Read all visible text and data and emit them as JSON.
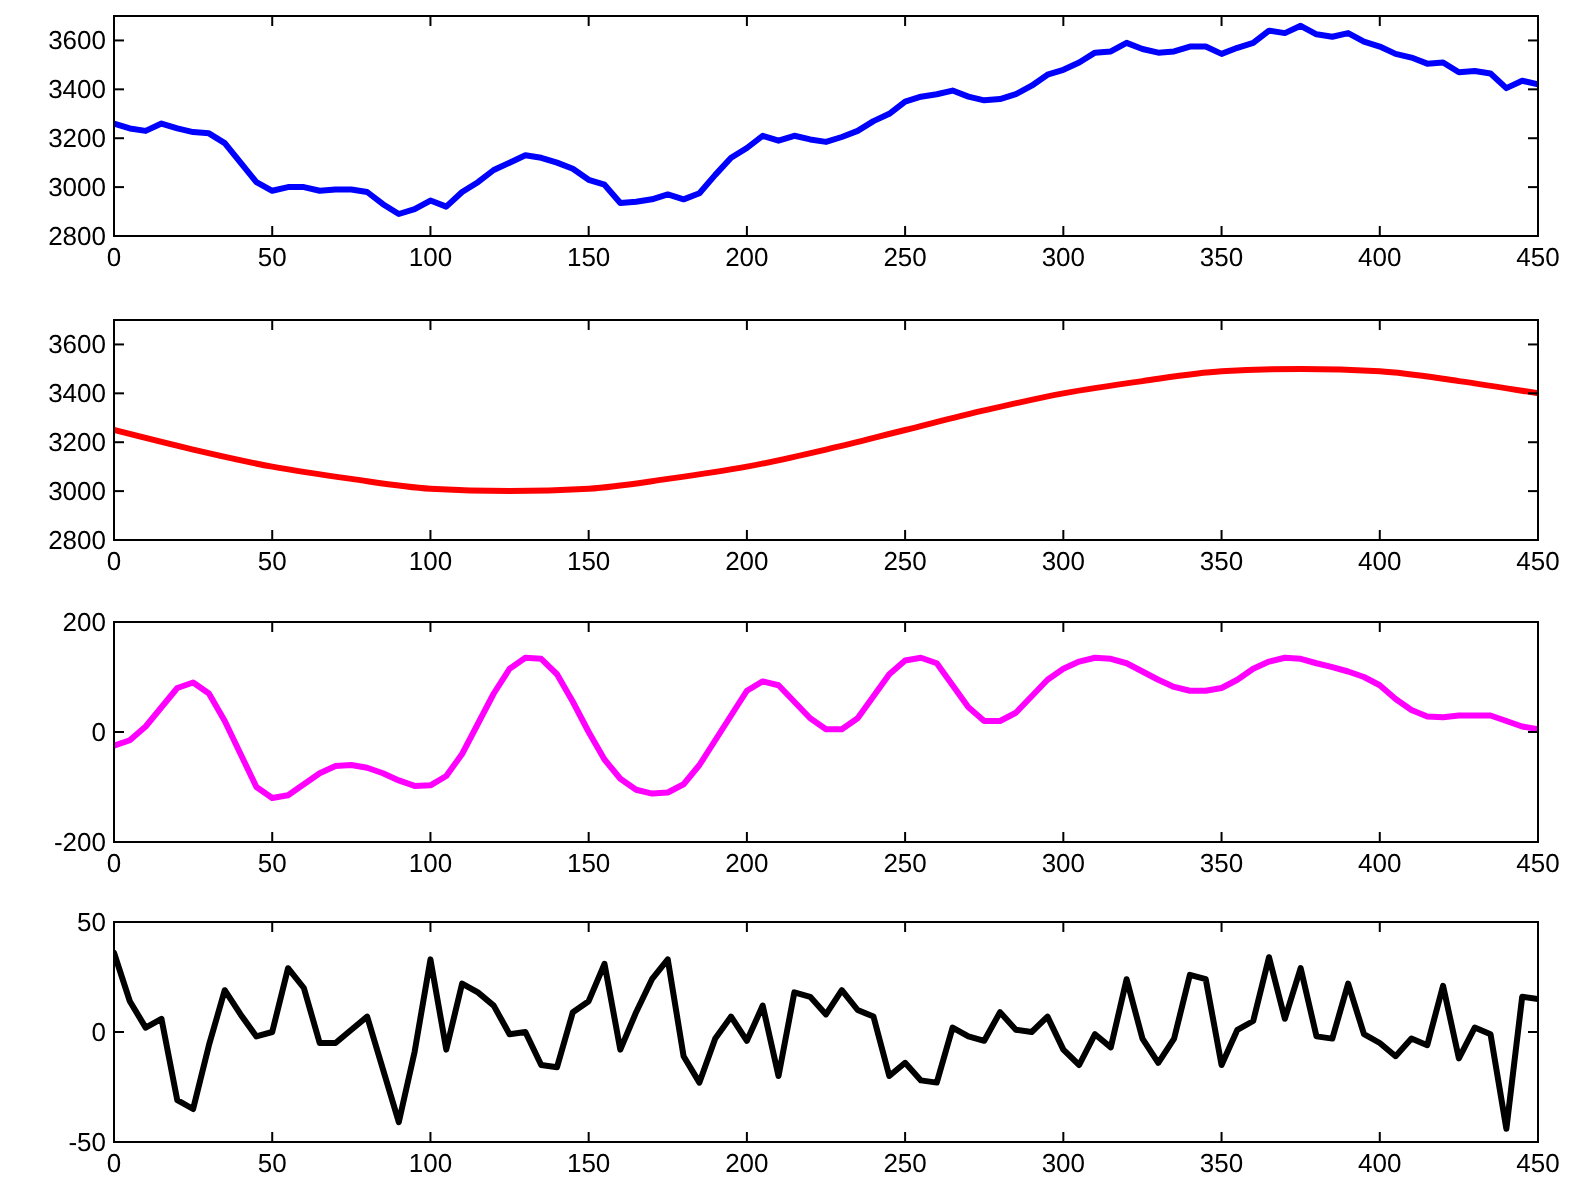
{
  "chart_data": [
    {
      "type": "line",
      "x": [
        0,
        5,
        10,
        15,
        20,
        25,
        30,
        35,
        40,
        45,
        50,
        55,
        60,
        65,
        70,
        75,
        80,
        85,
        90,
        95,
        100,
        105,
        110,
        115,
        120,
        125,
        130,
        135,
        140,
        145,
        150,
        155,
        160,
        165,
        170,
        175,
        180,
        185,
        190,
        195,
        200,
        205,
        210,
        215,
        220,
        225,
        230,
        235,
        240,
        245,
        250,
        255,
        260,
        265,
        270,
        275,
        280,
        285,
        290,
        295,
        300,
        305,
        310,
        315,
        320,
        325,
        330,
        335,
        340,
        345,
        350,
        355,
        360,
        365,
        370,
        375,
        380,
        385,
        390,
        395,
        400,
        405,
        410,
        415,
        420,
        425,
        430,
        435,
        440,
        445,
        450
      ],
      "series": [
        {
          "color": "#0000ff",
          "values": [
            3260,
            3240,
            3230,
            3260,
            3240,
            3225,
            3220,
            3180,
            3100,
            3020,
            2985,
            3000,
            3000,
            2985,
            2990,
            2990,
            2980,
            2930,
            2890,
            2910,
            2945,
            2920,
            2980,
            3020,
            3070,
            3100,
            3130,
            3120,
            3100,
            3075,
            3030,
            3010,
            2935,
            2940,
            2950,
            2970,
            2950,
            2975,
            3050,
            3120,
            3160,
            3210,
            3190,
            3210,
            3195,
            3185,
            3205,
            3230,
            3270,
            3300,
            3350,
            3370,
            3380,
            3395,
            3370,
            3355,
            3360,
            3380,
            3415,
            3460,
            3480,
            3510,
            3550,
            3555,
            3590,
            3565,
            3550,
            3555,
            3575,
            3575,
            3545,
            3570,
            3590,
            3640,
            3630,
            3660,
            3625,
            3615,
            3630,
            3595,
            3575,
            3545,
            3530,
            3505,
            3510,
            3470,
            3475,
            3465,
            3405,
            3435,
            3420
          ]
        }
      ],
      "xlim": [
        0,
        450
      ],
      "xticks": [
        0,
        50,
        100,
        150,
        200,
        250,
        300,
        350,
        400,
        450
      ],
      "ylim": [
        2800,
        3700
      ],
      "yticks": [
        2800,
        3000,
        3200,
        3400,
        3600
      ],
      "grid": false,
      "marker": "none",
      "line_style": "solid"
    },
    {
      "type": "line",
      "x": [
        0,
        25,
        50,
        75,
        100,
        125,
        150,
        175,
        200,
        225,
        250,
        275,
        300,
        325,
        350,
        375,
        400,
        425,
        450
      ],
      "series": [
        {
          "color": "#ff0000",
          "values": [
            3250,
            3170,
            3100,
            3050,
            3010,
            3000,
            3010,
            3050,
            3100,
            3170,
            3250,
            3330,
            3400,
            3450,
            3490,
            3500,
            3490,
            3450,
            3400
          ]
        }
      ],
      "xlim": [
        0,
        450
      ],
      "xticks": [
        0,
        50,
        100,
        150,
        200,
        250,
        300,
        350,
        400,
        450
      ],
      "ylim": [
        2800,
        3700
      ],
      "yticks": [
        2800,
        3000,
        3200,
        3400,
        3600
      ],
      "grid": false,
      "marker": "none",
      "line_style": "solid"
    },
    {
      "type": "line",
      "x": [
        0,
        5,
        10,
        15,
        20,
        25,
        30,
        35,
        40,
        45,
        50,
        55,
        60,
        65,
        70,
        75,
        80,
        85,
        90,
        95,
        100,
        105,
        110,
        115,
        120,
        125,
        130,
        135,
        140,
        145,
        150,
        155,
        160,
        165,
        170,
        175,
        180,
        185,
        190,
        195,
        200,
        205,
        210,
        215,
        220,
        225,
        230,
        235,
        240,
        245,
        250,
        255,
        260,
        265,
        270,
        275,
        280,
        285,
        290,
        295,
        300,
        305,
        310,
        315,
        320,
        325,
        330,
        335,
        340,
        345,
        350,
        355,
        360,
        365,
        370,
        375,
        380,
        385,
        390,
        395,
        400,
        405,
        410,
        415,
        420,
        425,
        430,
        435,
        440,
        445,
        450
      ],
      "series": [
        {
          "color": "#ff00ff",
          "values": [
            -25,
            -15,
            10,
            45,
            80,
            90,
            70,
            20,
            -40,
            -100,
            -120,
            -115,
            -95,
            -75,
            -62,
            -60,
            -65,
            -75,
            -88,
            -98,
            -97,
            -80,
            -40,
            15,
            70,
            115,
            135,
            133,
            105,
            55,
            0,
            -50,
            -85,
            -105,
            -112,
            -110,
            -95,
            -60,
            -15,
            30,
            75,
            92,
            85,
            55,
            25,
            5,
            5,
            25,
            65,
            105,
            130,
            135,
            125,
            85,
            45,
            20,
            20,
            35,
            65,
            95,
            115,
            128,
            135,
            133,
            125,
            110,
            95,
            82,
            75,
            75,
            80,
            95,
            115,
            128,
            135,
            133,
            125,
            118,
            110,
            100,
            85,
            60,
            40,
            28,
            27,
            30,
            30,
            30,
            20,
            10,
            5
          ]
        }
      ],
      "xlim": [
        0,
        450
      ],
      "xticks": [
        0,
        50,
        100,
        150,
        200,
        250,
        300,
        350,
        400,
        450
      ],
      "ylim": [
        -200,
        200
      ],
      "yticks": [
        -200,
        0,
        200
      ],
      "grid": false,
      "marker": "none",
      "line_style": "solid"
    },
    {
      "type": "line",
      "x": [
        0,
        5,
        10,
        15,
        20,
        25,
        30,
        35,
        40,
        45,
        50,
        55,
        60,
        65,
        70,
        75,
        80,
        85,
        90,
        95,
        100,
        105,
        110,
        115,
        120,
        125,
        130,
        135,
        140,
        145,
        150,
        155,
        160,
        165,
        170,
        175,
        180,
        185,
        190,
        195,
        200,
        205,
        210,
        215,
        220,
        225,
        230,
        235,
        240,
        245,
        250,
        255,
        260,
        265,
        270,
        275,
        280,
        285,
        290,
        295,
        300,
        305,
        310,
        315,
        320,
        325,
        330,
        335,
        340,
        345,
        350,
        355,
        360,
        365,
        370,
        375,
        380,
        385,
        390,
        395,
        400,
        405,
        410,
        415,
        420,
        425,
        430,
        435,
        440,
        445,
        450
      ],
      "series": [
        {
          "color": "#000000",
          "values": [
            36,
            14,
            2,
            6,
            -31,
            -35,
            -6,
            19,
            8,
            -2,
            0,
            29,
            20,
            -5,
            -5,
            1,
            7,
            -17,
            -41,
            -9,
            33,
            -8,
            22,
            18,
            12,
            -1,
            0,
            -15,
            -16,
            9,
            14,
            31,
            -8,
            9,
            24,
            33,
            -11,
            -23,
            -3,
            7,
            -4,
            12,
            -20,
            18,
            16,
            8,
            19,
            10,
            7,
            -20,
            -14,
            -22,
            -23,
            2,
            -2,
            -4,
            9,
            1,
            0,
            7,
            -8,
            -15,
            -1,
            -7,
            24,
            -3,
            -14,
            -3,
            26,
            24,
            -15,
            1,
            5,
            34,
            6,
            29,
            -2,
            -3,
            22,
            -1,
            -5,
            -11,
            -3,
            -6,
            21,
            -12,
            2,
            -1,
            -44,
            16,
            15
          ]
        }
      ],
      "xlim": [
        0,
        450
      ],
      "xticks": [
        0,
        50,
        100,
        150,
        200,
        250,
        300,
        350,
        400,
        450
      ],
      "ylim": [
        -50,
        50
      ],
      "yticks": [
        -50,
        0,
        50
      ],
      "grid": false,
      "marker": "none",
      "line_style": "solid"
    }
  ]
}
